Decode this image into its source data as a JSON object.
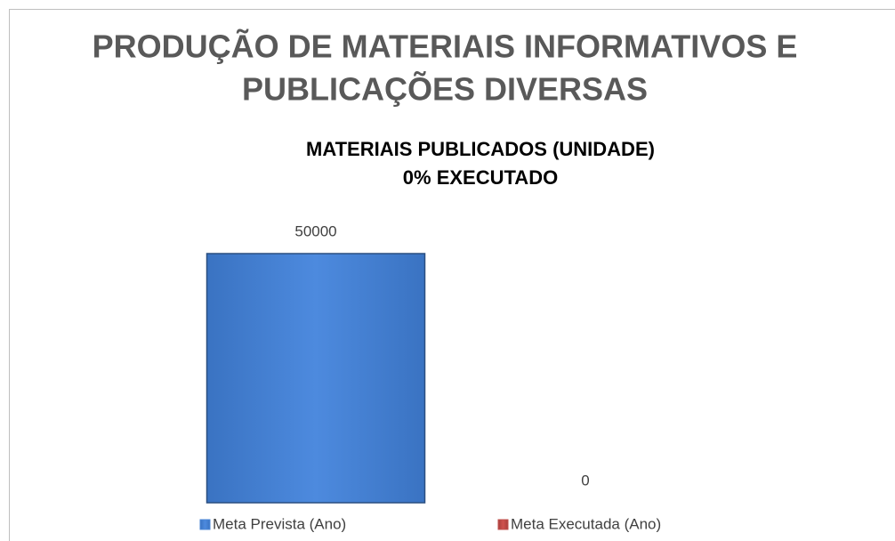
{
  "chart_data": {
    "type": "bar",
    "title": [
      "PRODUÇÃO DE MATERIAIS INFORMATIVOS E",
      "PUBLICAÇÕES DIVERSAS"
    ],
    "subtitle": [
      "MATERIAIS PUBLICADOS (UNIDADE)",
      "0% EXECUTADO"
    ],
    "series": [
      {
        "name": "Meta Prevista (Ano)",
        "color": "#4a86d6",
        "values": [
          50000
        ]
      },
      {
        "name": "Meta Executada (Ano)",
        "color": "#c0504d",
        "values": [
          0
        ]
      }
    ],
    "legend": "bottom"
  }
}
